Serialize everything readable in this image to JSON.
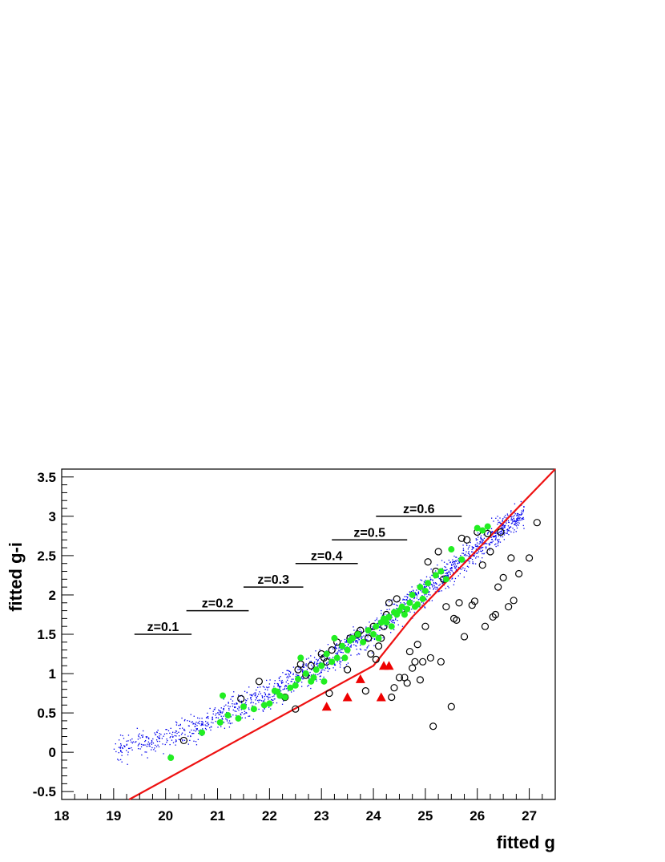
{
  "chart_data": {
    "type": "scatter",
    "title": "",
    "xlabel": "fitted g",
    "ylabel": "fitted g-i",
    "xlim": [
      18,
      27.5
    ],
    "ylim": [
      -0.6,
      3.6
    ],
    "x_ticks": [
      {
        "value": 18,
        "label": "18"
      },
      {
        "value": 19,
        "label": "19"
      },
      {
        "value": 20,
        "label": "20"
      },
      {
        "value": 21,
        "label": "21"
      },
      {
        "value": 22,
        "label": "22"
      },
      {
        "value": 23,
        "label": "23"
      },
      {
        "value": 24,
        "label": "24"
      },
      {
        "value": 25,
        "label": "25"
      },
      {
        "value": 26,
        "label": "26"
      },
      {
        "value": 27,
        "label": "27"
      }
    ],
    "y_ticks": [
      {
        "value": -0.5,
        "label": "-0.5"
      },
      {
        "value": 0,
        "label": "0"
      },
      {
        "value": 0.5,
        "label": "0.5"
      },
      {
        "value": 1,
        "label": "1"
      },
      {
        "value": 1.5,
        "label": "1.5"
      },
      {
        "value": 2,
        "label": "2"
      },
      {
        "value": 2.5,
        "label": "2.5"
      },
      {
        "value": 3,
        "label": "3"
      },
      {
        "value": 3.5,
        "label": "3.5"
      }
    ],
    "grid": false,
    "colors": {
      "blue_points": "#0000ee",
      "green_points": "#22ee22",
      "open_circles": "#000000",
      "triangles": "#ee0000",
      "cut_line": "#ee1111"
    },
    "cut_line": {
      "x": [
        19.3,
        24.0,
        24.75,
        27.5
      ],
      "y": [
        -0.6,
        1.1,
        1.72,
        3.6
      ]
    },
    "z_markers": [
      {
        "label": "z=0.1",
        "x_start": 19.4,
        "x_end": 20.5,
        "y": 1.5
      },
      {
        "label": "z=0.2",
        "x_start": 20.4,
        "x_end": 21.6,
        "y": 1.8
      },
      {
        "label": "z=0.3",
        "x_start": 21.5,
        "x_end": 22.65,
        "y": 2.1
      },
      {
        "label": "z=0.4",
        "x_start": 22.5,
        "x_end": 23.7,
        "y": 2.4
      },
      {
        "label": "z=0.5",
        "x_start": 23.2,
        "x_end": 24.65,
        "y": 2.7
      },
      {
        "label": "z=0.6",
        "x_start": 24.05,
        "x_end": 25.7,
        "y": 3.0
      }
    ],
    "series": [
      {
        "marker": "open-circle",
        "x": [
          20.35,
          21.45,
          21.8,
          22.3,
          22.5,
          22.55,
          22.6,
          22.7,
          22.8,
          23.0,
          23.05,
          23.1,
          23.15,
          23.2,
          23.3,
          23.5,
          23.55,
          23.7,
          23.75,
          23.85,
          23.9,
          23.95,
          24.0,
          24.05,
          24.1,
          24.15,
          24.2,
          24.25,
          24.3,
          24.35,
          24.4,
          24.45,
          24.5,
          24.55,
          24.6,
          24.65,
          24.7,
          24.75,
          24.8,
          24.85,
          24.9,
          24.95,
          25.0,
          25.05,
          25.1,
          25.15,
          25.2,
          25.25,
          25.3,
          25.35,
          25.4,
          25.5,
          25.55,
          25.6,
          25.65,
          25.7,
          25.75,
          25.8,
          25.9,
          25.95,
          26.0,
          26.1,
          26.15,
          26.2,
          26.25,
          26.3,
          26.35,
          26.4,
          26.45,
          26.5,
          26.6,
          26.65,
          26.7,
          26.8,
          27.0,
          27.15
        ],
        "y": [
          0.15,
          0.68,
          0.9,
          0.7,
          0.55,
          1.05,
          1.12,
          0.98,
          1.1,
          1.25,
          1.2,
          1.15,
          0.75,
          1.3,
          1.4,
          1.05,
          1.45,
          1.5,
          1.55,
          0.78,
          1.45,
          1.25,
          1.6,
          1.18,
          1.35,
          1.45,
          1.6,
          1.75,
          1.9,
          0.7,
          0.82,
          1.95,
          0.95,
          1.82,
          0.95,
          0.88,
          1.28,
          1.07,
          1.15,
          1.37,
          0.92,
          1.15,
          1.6,
          2.42,
          1.2,
          0.33,
          2.3,
          2.55,
          1.15,
          2.2,
          1.85,
          0.58,
          1.7,
          1.68,
          1.9,
          2.72,
          1.47,
          2.7,
          1.87,
          1.92,
          2.8,
          2.38,
          1.6,
          2.78,
          2.55,
          1.72,
          1.75,
          2.1,
          2.8,
          2.22,
          1.85,
          2.47,
          1.93,
          2.27,
          2.47,
          2.92
        ]
      },
      {
        "marker": "filled-circle",
        "x": [
          20.1,
          20.7,
          21.05,
          21.1,
          21.2,
          21.4,
          21.5,
          21.7,
          21.9,
          22.0,
          22.1,
          22.15,
          22.2,
          22.3,
          22.4,
          22.5,
          22.55,
          22.6,
          22.7,
          22.8,
          22.85,
          22.9,
          23.0,
          23.05,
          23.1,
          23.2,
          23.25,
          23.3,
          23.4,
          23.45,
          23.5,
          23.55,
          23.6,
          23.7,
          23.8,
          23.9,
          24.0,
          24.05,
          24.1,
          24.15,
          24.2,
          24.25,
          24.3,
          24.35,
          24.4,
          24.45,
          24.5,
          24.55,
          24.6,
          24.65,
          24.7,
          24.75,
          24.8,
          24.85,
          24.9,
          24.95,
          25.0,
          25.05,
          25.2,
          25.3,
          25.4,
          25.5,
          25.7,
          26.0,
          26.1,
          26.2
        ],
        "y": [
          -0.07,
          0.25,
          0.38,
          0.72,
          0.47,
          0.43,
          0.58,
          0.55,
          0.6,
          0.62,
          0.78,
          0.77,
          0.72,
          0.7,
          0.82,
          0.85,
          0.93,
          1.2,
          1.0,
          0.9,
          0.95,
          1.05,
          1.1,
          0.9,
          1.25,
          1.15,
          1.45,
          1.2,
          1.35,
          1.2,
          1.3,
          1.42,
          1.45,
          1.5,
          1.4,
          1.55,
          1.5,
          1.6,
          1.45,
          1.65,
          1.7,
          1.65,
          1.72,
          1.6,
          1.78,
          1.75,
          1.8,
          1.85,
          1.75,
          1.82,
          1.9,
          2.0,
          1.85,
          1.88,
          2.1,
          1.95,
          2.05,
          2.15,
          2.25,
          2.3,
          2.2,
          2.58,
          2.45,
          2.85,
          2.82,
          2.87
        ]
      },
      {
        "marker": "triangle",
        "x": [
          23.1,
          23.5,
          23.75,
          24.15,
          24.2,
          24.3
        ],
        "y": [
          0.58,
          0.7,
          0.93,
          0.7,
          1.1,
          1.1
        ]
      },
      {
        "marker": "dot",
        "distribution": {
          "count": 1700,
          "x_min": 19.0,
          "x_max": 26.9,
          "spread_sd": 0.18
        },
        "relation": {
          "x": [
            18.7,
            20.0,
            21.0,
            22.0,
            23.0,
            24.0,
            25.0,
            26.0,
            26.9
          ],
          "y": [
            0.0,
            0.18,
            0.45,
            0.75,
            1.12,
            1.55,
            2.05,
            2.6,
            3.05
          ]
        }
      }
    ]
  }
}
